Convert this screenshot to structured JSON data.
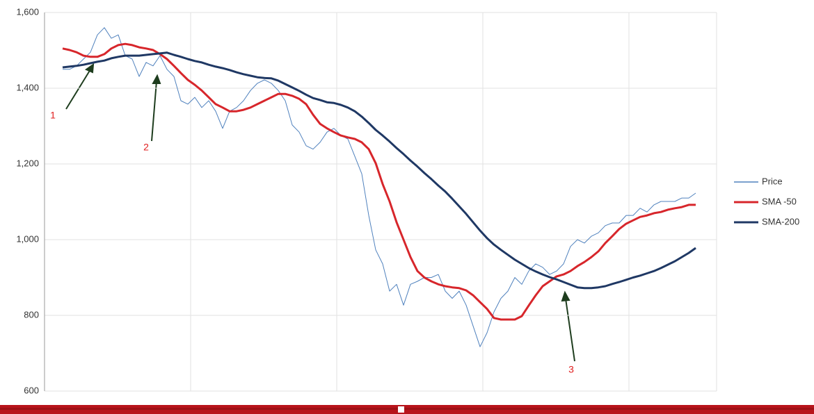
{
  "chart_data": {
    "type": "line",
    "x": [
      0,
      10,
      20,
      30,
      40,
      50,
      60,
      70,
      80,
      90,
      100,
      110,
      120,
      130,
      140,
      150,
      160,
      170,
      180,
      190,
      200,
      210,
      220,
      230,
      240,
      250,
      260,
      270,
      280,
      290,
      300,
      310,
      320,
      330,
      340,
      350,
      360,
      370,
      380,
      390,
      400,
      410,
      420,
      430,
      440,
      450,
      460,
      470,
      480,
      490,
      500,
      510,
      520,
      530,
      540,
      550,
      560,
      570,
      580,
      590,
      600,
      610,
      620,
      630,
      640,
      650,
      660,
      670,
      680,
      690,
      700,
      710,
      720,
      730,
      740,
      750,
      760,
      770,
      780,
      790,
      800,
      810,
      820,
      830,
      840,
      850,
      860,
      870,
      880,
      890,
      900,
      910
    ],
    "xlim": [
      -26,
      940
    ],
    "ylim": [
      600,
      1600
    ],
    "yticks": [
      600,
      800,
      {
        "value": 1000,
        "label": "1,000"
      },
      {
        "value": 1200,
        "label": "1,200"
      },
      {
        "value": 1400,
        "label": "1,400"
      },
      {
        "value": 1600,
        "label": "1,600"
      }
    ],
    "grid": true,
    "legend": "right",
    "series": [
      {
        "name": "Price",
        "color": "#4f81bd",
        "width": 1,
        "values": [
          1450,
          1450,
          1459,
          1477,
          1495,
          1541,
          1560,
          1532,
          1541,
          1486,
          1477,
          1431,
          1468,
          1459,
          1486,
          1450,
          1431,
          1367,
          1358,
          1376,
          1349,
          1367,
          1339,
          1294,
          1339,
          1349,
          1367,
          1394,
          1413,
          1422,
          1413,
          1394,
          1367,
          1303,
          1284,
          1248,
          1239,
          1257,
          1284,
          1294,
          1275,
          1266,
          1220,
          1174,
          1064,
          973,
          936,
          864,
          882,
          827,
          882,
          890,
          900,
          900,
          908,
          864,
          845,
          864,
          827,
          772,
          717,
          754,
          809,
          845,
          864,
          900,
          882,
          917,
          936,
          927,
          908,
          917,
          936,
          982,
          1000,
          991,
          1009,
          1018,
          1037,
          1044,
          1044,
          1064,
          1064,
          1083,
          1073,
          1092,
          1101,
          1101,
          1101,
          1110,
          1110,
          1123
        ]
      },
      {
        "name": "SMA -50",
        "color": "#d7262b",
        "width": 3,
        "values": [
          1505,
          1501,
          1495,
          1486,
          1483,
          1483,
          1490,
          1505,
          1514,
          1517,
          1514,
          1508,
          1505,
          1501,
          1490,
          1477,
          1459,
          1440,
          1422,
          1409,
          1394,
          1376,
          1358,
          1349,
          1339,
          1339,
          1343,
          1349,
          1358,
          1367,
          1376,
          1385,
          1385,
          1380,
          1372,
          1358,
          1330,
          1306,
          1294,
          1284,
          1275,
          1270,
          1266,
          1257,
          1239,
          1202,
          1147,
          1101,
          1046,
          1000,
          954,
          917,
          900,
          890,
          882,
          877,
          874,
          872,
          866,
          853,
          835,
          817,
          793,
          789,
          789,
          789,
          798,
          826,
          853,
          877,
          890,
          903,
          908,
          917,
          930,
          941,
          954,
          969,
          991,
          1009,
          1028,
          1042,
          1051,
          1060,
          1064,
          1070,
          1073,
          1079,
          1083,
          1086,
          1092,
          1092
        ]
      },
      {
        "name": "SMA-200",
        "color": "#1f3864",
        "width": 3,
        "values": [
          1455,
          1457,
          1459,
          1462,
          1466,
          1470,
          1473,
          1479,
          1483,
          1486,
          1486,
          1486,
          1488,
          1490,
          1492,
          1494,
          1488,
          1483,
          1477,
          1472,
          1468,
          1462,
          1457,
          1453,
          1448,
          1442,
          1437,
          1433,
          1429,
          1427,
          1426,
          1420,
          1411,
          1402,
          1393,
          1383,
          1374,
          1369,
          1363,
          1361,
          1356,
          1349,
          1339,
          1325,
          1308,
          1290,
          1275,
          1259,
          1242,
          1226,
          1209,
          1193,
          1176,
          1160,
          1143,
          1127,
          1108,
          1088,
          1068,
          1046,
          1024,
          1004,
          987,
          973,
          960,
          947,
          936,
          925,
          916,
          908,
          901,
          895,
          888,
          881,
          874,
          872,
          872,
          874,
          877,
          883,
          888,
          894,
          900,
          905,
          911,
          917,
          925,
          934,
          943,
          954,
          965,
          978
        ]
      }
    ],
    "annotations": [
      "1",
      "2",
      "3"
    ]
  }
}
